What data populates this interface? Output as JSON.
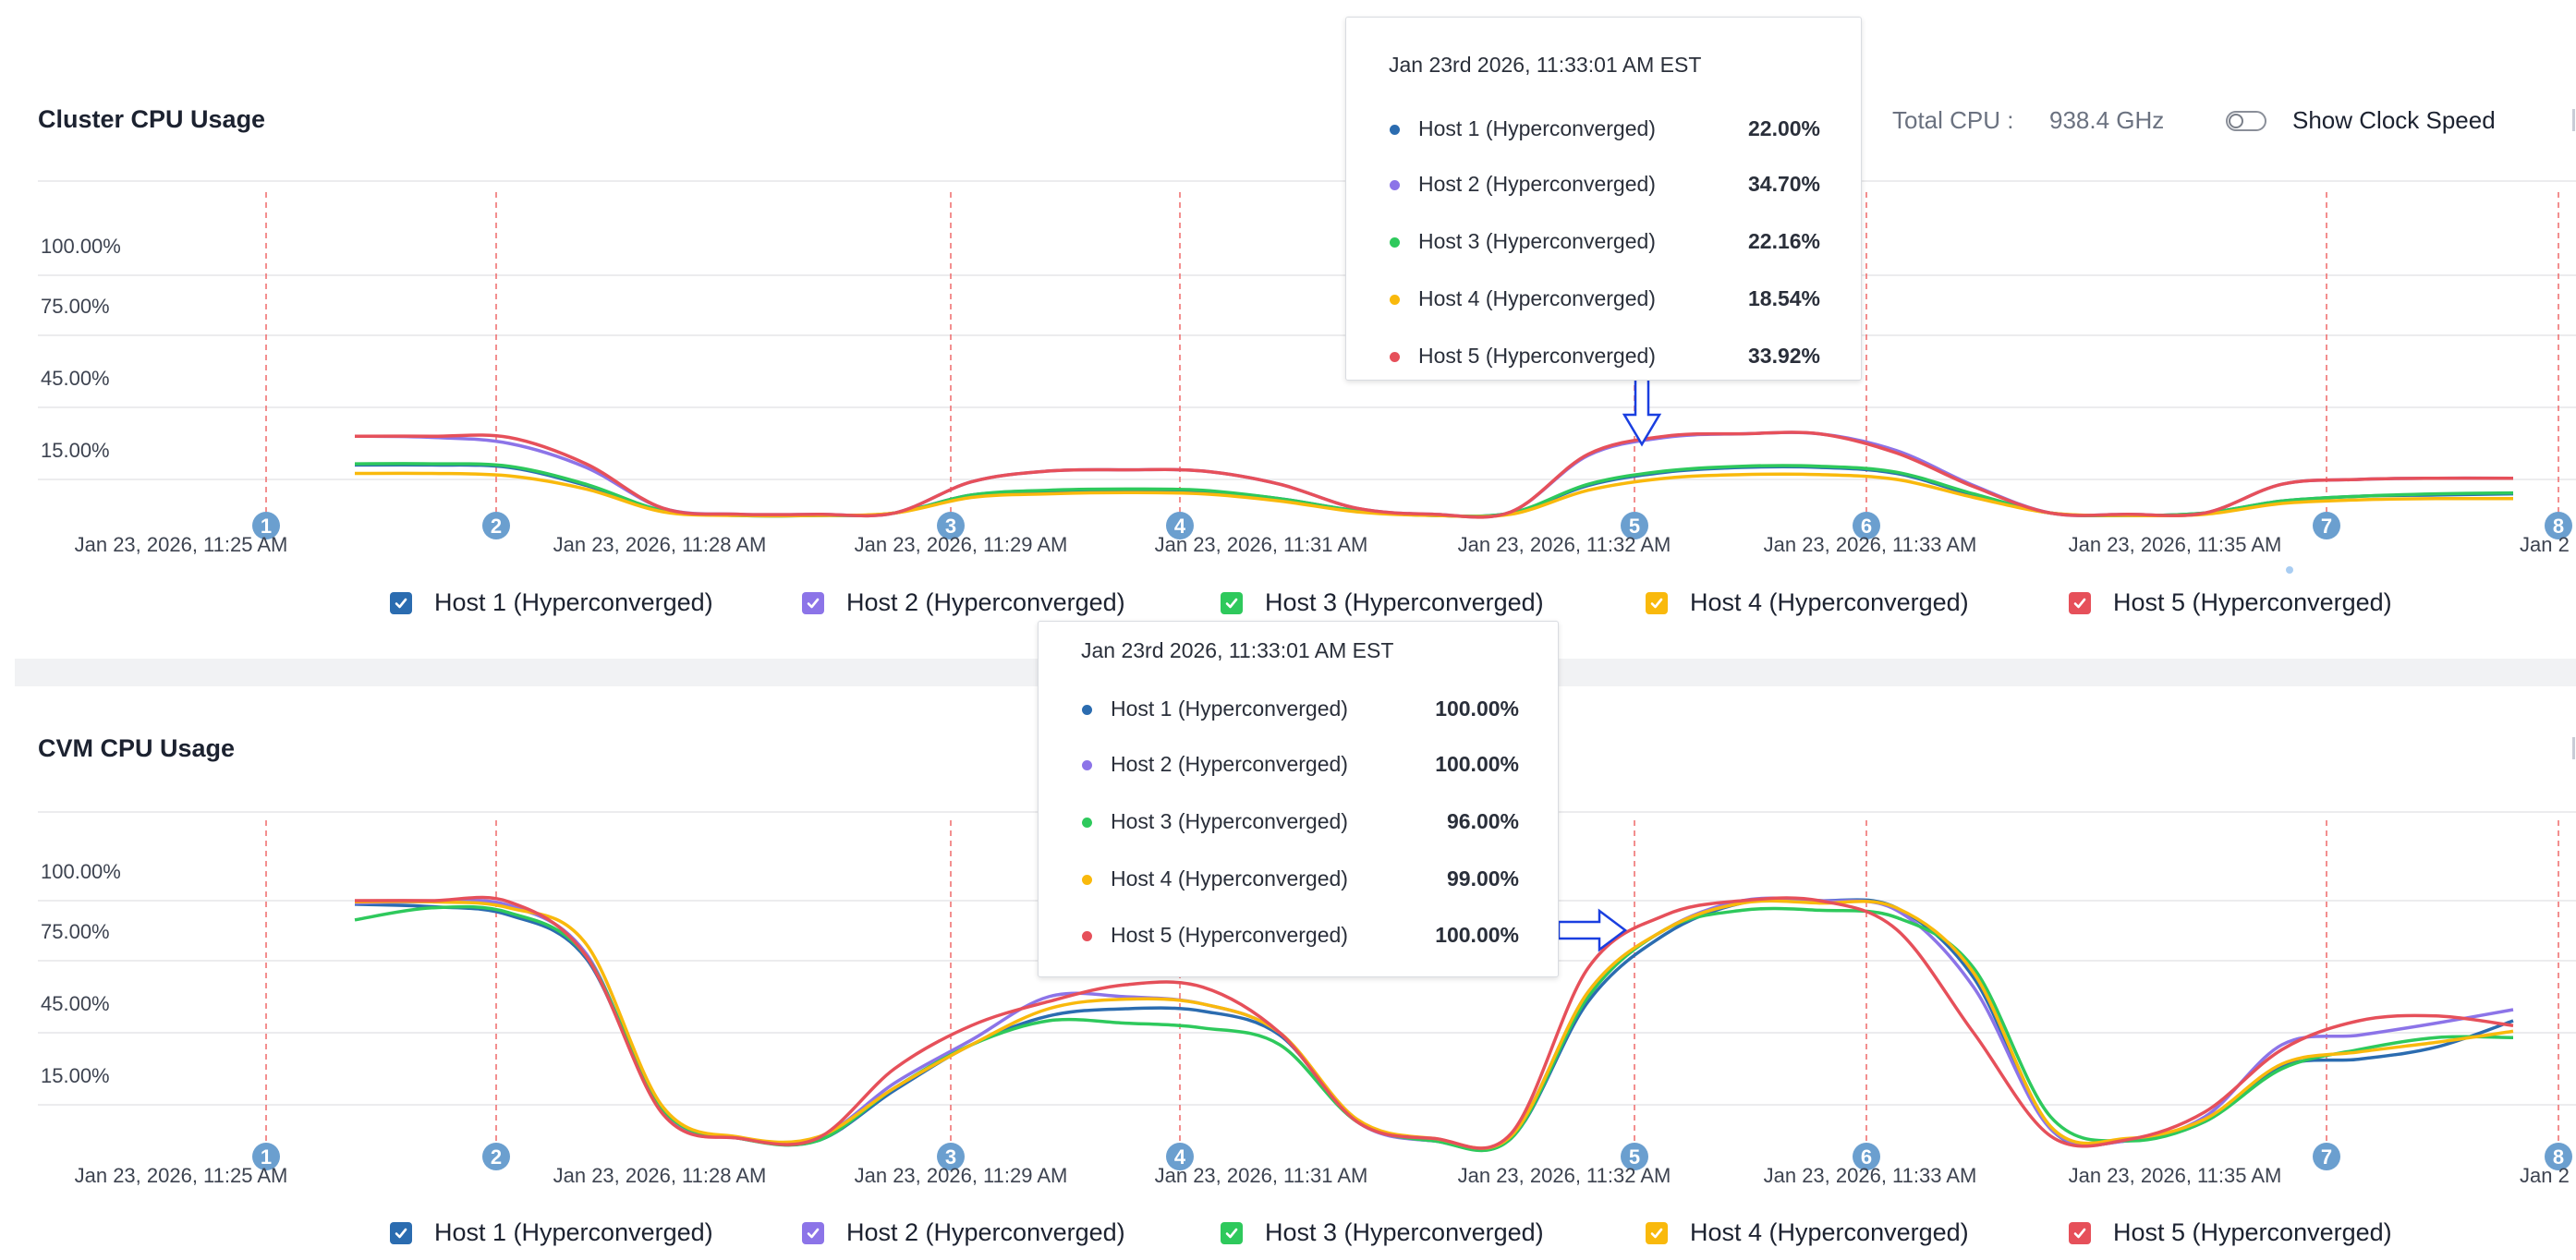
{
  "colors": {
    "host1": "#2b6cb0",
    "host2": "#8c74e8",
    "host3": "#2ec95c",
    "host4": "#f9b90c",
    "host5": "#e6505a",
    "marker": "#6b9fcf",
    "guide": "#ef6a6a",
    "arrow": "#1a3fe0"
  },
  "header": {
    "total_cpu_label": "Total CPU :",
    "total_cpu_value": "938.4 GHz",
    "show_clock_speed_label": "Show Clock Speed",
    "show_clock_speed_on": false
  },
  "chart_data": [
    {
      "type": "line",
      "title": "Cluster CPU Usage",
      "y_ticks": [
        "100.00%",
        "75.00%",
        "45.00%",
        "15.00%"
      ],
      "y_tick_values": [
        100,
        75,
        45,
        15
      ],
      "x_tick_labels": [
        "Jan 23, 2026, 11:25 AM",
        "Jan 23, 2026, 11:28 AM",
        "Jan 23, 2026, 11:29 AM",
        "Jan 23, 2026, 11:31 AM",
        "Jan 23, 2026, 11:32 AM",
        "Jan 23, 2026, 11:33 AM",
        "Jan 23, 2026, 11:35 AM",
        "Jan 2"
      ],
      "markers": [
        "1",
        "2",
        "3",
        "4",
        "5",
        "6",
        "7",
        "8"
      ],
      "grid": true,
      "legend_placement": "bottom",
      "series": [
        {
          "name": "Host 1 (Hyperconverged)",
          "color_key": "host1",
          "checked": true,
          "values": [
            21,
            21,
            20,
            12.5,
            2,
            0,
            0,
            1,
            8.5,
            10,
            10.5,
            10,
            7,
            2,
            0,
            1,
            12.5,
            18,
            20,
            20,
            17.5,
            8.5,
            1,
            0,
            1,
            6,
            8,
            8.5,
            9
          ]
        },
        {
          "name": "Host 2 (Hyperconverged)",
          "color_key": "host2",
          "checked": true,
          "values": [
            33,
            32.5,
            30,
            20,
            3,
            0.5,
            0.5,
            1,
            14,
            18.5,
            19,
            18.5,
            13,
            3,
            0.5,
            1.5,
            25,
            32.5,
            34,
            34,
            27,
            12.5,
            1,
            0.5,
            1,
            13,
            15,
            15.5,
            15.5
          ]
        },
        {
          "name": "Host 3 (Hyperconverged)",
          "color_key": "host3",
          "checked": true,
          "values": [
            21.5,
            21.5,
            20.5,
            13,
            2,
            0,
            0,
            1,
            8.5,
            10.5,
            11,
            10.5,
            7,
            2,
            0,
            1,
            13,
            18.5,
            20.5,
            20.5,
            18,
            9,
            1,
            0,
            1,
            6,
            8,
            9,
            9.4
          ]
        },
        {
          "name": "Host 4 (Hyperconverged)",
          "color_key": "host4",
          "checked": true,
          "values": [
            17.5,
            17.5,
            16.5,
            11,
            1.5,
            0,
            0,
            1,
            7.5,
            9,
            9.5,
            9,
            6,
            1.5,
            0,
            0.5,
            10.5,
            15.5,
            17,
            17,
            15,
            7.5,
            1,
            0,
            0.5,
            5,
            6.5,
            7,
            7
          ]
        },
        {
          "name": "Host 5 (Hyperconverged)",
          "color_key": "host5",
          "checked": true,
          "values": [
            33,
            33,
            32.5,
            21.5,
            3,
            0.5,
            0.5,
            1,
            14,
            18.5,
            19,
            18.5,
            13,
            3,
            0.5,
            1.5,
            25.5,
            33,
            34,
            34,
            26,
            12,
            1,
            0.5,
            1,
            13,
            15,
            15.5,
            15.5
          ]
        }
      ],
      "tooltip": {
        "title": "Jan 23rd 2026, 11:33:01 AM EST",
        "rows": [
          {
            "label": "Host 1 (Hyperconverged)",
            "value": "22.00%",
            "color_key": "host1"
          },
          {
            "label": "Host 2 (Hyperconverged)",
            "value": "34.70%",
            "color_key": "host2"
          },
          {
            "label": "Host 3 (Hyperconverged)",
            "value": "22.16%",
            "color_key": "host3"
          },
          {
            "label": "Host 4 (Hyperconverged)",
            "value": "18.54%",
            "color_key": "host4"
          },
          {
            "label": "Host 5 (Hyperconverged)",
            "value": "33.92%",
            "color_key": "host5"
          }
        ]
      }
    },
    {
      "type": "line",
      "title": "CVM CPU Usage",
      "y_ticks": [
        "100.00%",
        "75.00%",
        "45.00%",
        "15.00%"
      ],
      "y_tick_values": [
        100,
        75,
        45,
        15
      ],
      "x_tick_labels": [
        "Jan 23, 2026, 11:25 AM",
        "Jan 23, 2026, 11:28 AM",
        "Jan 23, 2026, 11:29 AM",
        "Jan 23, 2026, 11:31 AM",
        "Jan 23, 2026, 11:32 AM",
        "Jan 23, 2026, 11:33 AM",
        "Jan 23, 2026, 11:35 AM",
        "Jan 2"
      ],
      "markers": [
        "1",
        "2",
        "3",
        "4",
        "5",
        "6",
        "7",
        "8"
      ],
      "grid": true,
      "legend_placement": "bottom",
      "series": [
        {
          "name": "Host 1 (Hyperconverged)",
          "color_key": "host1",
          "checked": true,
          "values": [
            98.5,
            97.5,
            94,
            76,
            12,
            1,
            0,
            21,
            40,
            52,
            55,
            54,
            44,
            8,
            0,
            1,
            58,
            86,
            99,
            100,
            97,
            68,
            5,
            0,
            8,
            31,
            34,
            39,
            50
          ]
        },
        {
          "name": "Host 2 (Hyperconverged)",
          "color_key": "host2",
          "checked": true,
          "values": [
            99,
            99.5,
            98,
            78,
            12,
            1,
            1,
            24,
            42,
            60,
            60,
            57,
            45,
            8,
            0,
            2,
            62,
            88,
            100,
            100,
            96,
            64,
            5,
            0,
            10,
            40,
            44,
            49,
            54.6
          ]
        },
        {
          "name": "Host 3 (Hyperconverged)",
          "color_key": "host3",
          "checked": true,
          "values": [
            92,
            97,
            95,
            77,
            13,
            1,
            0,
            22,
            40,
            50,
            49,
            47,
            40,
            8,
            0,
            1,
            60,
            88,
            96,
            96,
            93,
            72,
            10,
            0,
            8,
            30,
            38,
            43,
            43
          ]
        },
        {
          "name": "Host 4 (Hyperconverged)",
          "color_key": "host4",
          "checked": true,
          "values": [
            99.5,
            99.5,
            97,
            82,
            14,
            1.5,
            1.5,
            22,
            40,
            55,
            59,
            57,
            45,
            9,
            1,
            2,
            62,
            88,
            99,
            99,
            97,
            70,
            6,
            1,
            9,
            32,
            37,
            41,
            45.6
          ]
        },
        {
          "name": "Host 5 (Hyperconverged)",
          "color_key": "host5",
          "checked": true,
          "values": [
            100,
            100,
            99.5,
            77,
            11,
            1,
            1,
            30,
            48,
            58,
            65,
            64,
            45,
            8,
            1,
            3,
            72,
            94,
            100,
            100,
            88,
            45,
            2,
            0.5,
            12,
            38,
            50,
            52,
            48
          ]
        }
      ],
      "tooltip": {
        "title": "Jan 23rd 2026, 11:33:01 AM EST",
        "rows": [
          {
            "label": "Host 1 (Hyperconverged)",
            "value": "100.00%",
            "color_key": "host1"
          },
          {
            "label": "Host 2 (Hyperconverged)",
            "value": "100.00%",
            "color_key": "host2"
          },
          {
            "label": "Host 3 (Hyperconverged)",
            "value": "96.00%",
            "color_key": "host3"
          },
          {
            "label": "Host 4 (Hyperconverged)",
            "value": "99.00%",
            "color_key": "host4"
          },
          {
            "label": "Host 5 (Hyperconverged)",
            "value": "100.00%",
            "color_key": "host5"
          }
        ]
      }
    }
  ]
}
